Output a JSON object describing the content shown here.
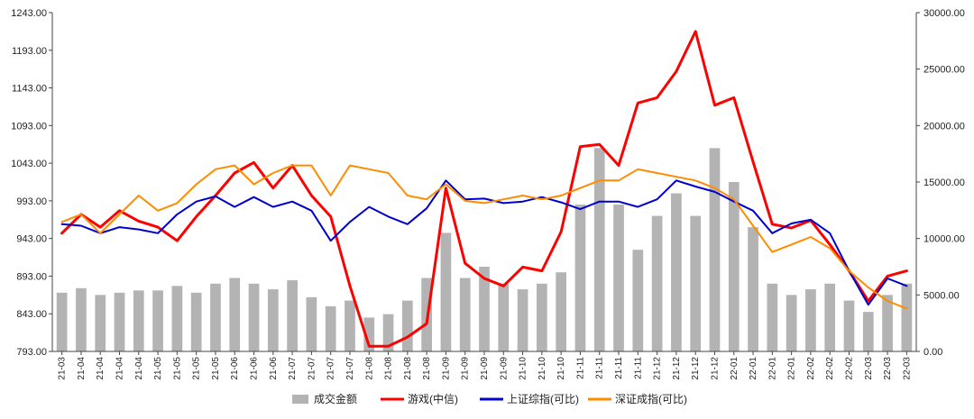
{
  "chart_data": {
    "type": "line",
    "title": "",
    "x_tick_labels": [
      "21-03",
      "21-04",
      "21-04",
      "21-04",
      "21-04",
      "21-05",
      "21-05",
      "21-05",
      "21-05",
      "21-06",
      "21-06",
      "21-06",
      "21-07",
      "21-07",
      "21-07",
      "21-07",
      "21-08",
      "21-08",
      "21-08",
      "21-08",
      "21-09",
      "21-09",
      "21-09",
      "21-09",
      "21-10",
      "21-10",
      "21-10",
      "21-11",
      "21-11",
      "21-11",
      "21-11",
      "21-12",
      "21-12",
      "21-12",
      "21-12",
      "22-01",
      "22-01",
      "22-01",
      "22-01",
      "22-02",
      "22-02",
      "22-02",
      "22-03",
      "22-03",
      "22-03"
    ],
    "y_left": {
      "label": "",
      "min": 793,
      "max": 1243,
      "ticks": [
        "793.00",
        "843.00",
        "893.00",
        "943.00",
        "993.00",
        "1043.00",
        "1093.00",
        "1143.00",
        "1193.00",
        "1243.00"
      ]
    },
    "y_right": {
      "label": "",
      "min": 0,
      "max": 30000,
      "ticks": [
        "0.00",
        "5000.00",
        "10000.00",
        "15000.00",
        "20000.00",
        "25000.00",
        "30000.00"
      ]
    },
    "legend": [
      {
        "name": "成交金额",
        "color": "#b3b3b3",
        "kind": "bar"
      },
      {
        "name": "游戏(中信)",
        "color": "#ff0000",
        "kind": "line"
      },
      {
        "name": "上证综指(可比)",
        "color": "#0000cc",
        "kind": "line"
      },
      {
        "name": "深证成指(可比)",
        "color": "#ff8c00",
        "kind": "line"
      }
    ],
    "series": [
      {
        "name": "游戏(中信)",
        "axis": "left",
        "color": "#ff0000",
        "values": [
          950,
          975,
          958,
          980,
          966,
          958,
          940,
          972,
          1000,
          1030,
          1044,
          1010,
          1040,
          1000,
          972,
          880,
          800,
          800,
          812,
          830,
          1010,
          910,
          890,
          880,
          905,
          900,
          952,
          1065,
          1068,
          1040,
          1123,
          1130,
          1165,
          1218,
          1120,
          1130,
          1045,
          962,
          957,
          967,
          935,
          900,
          860,
          893,
          900
        ]
      },
      {
        "name": "上证综指(可比)",
        "axis": "left",
        "color": "#0000cc",
        "values": [
          962,
          960,
          950,
          958,
          955,
          950,
          975,
          992,
          999,
          985,
          998,
          985,
          992,
          980,
          940,
          965,
          985,
          972,
          962,
          983,
          1020,
          995,
          996,
          990,
          992,
          998,
          991,
          982,
          992,
          992,
          985,
          995,
          1020,
          1012,
          1005,
          992,
          980,
          950,
          963,
          968,
          950,
          900,
          855,
          890,
          880
        ]
      },
      {
        "name": "深证成指(可比)",
        "axis": "left",
        "color": "#ff8c00",
        "values": [
          965,
          975,
          950,
          975,
          1000,
          980,
          990,
          1015,
          1035,
          1040,
          1015,
          1030,
          1040,
          1040,
          1000,
          1040,
          1035,
          1030,
          1000,
          995,
          1015,
          993,
          990,
          995,
          1000,
          995,
          1000,
          1010,
          1020,
          1020,
          1035,
          1030,
          1025,
          1020,
          1010,
          995,
          960,
          925,
          935,
          945,
          930,
          900,
          878,
          860,
          850
        ]
      },
      {
        "name": "成交金额",
        "axis": "right",
        "color": "#b3b3b3",
        "values": [
          5200,
          5600,
          5000,
          5200,
          5400,
          5400,
          5800,
          5200,
          6000,
          6500,
          6000,
          5500,
          6300,
          4800,
          4000,
          4500,
          3000,
          3300,
          4500,
          6500,
          10500,
          6500,
          7500,
          6000,
          5500,
          6000,
          7000,
          13000,
          18000,
          13000,
          9000,
          12000,
          14000,
          12000,
          18000,
          15000,
          11000,
          6000,
          5000,
          5500,
          6000,
          4500,
          3500,
          5000,
          6000
        ]
      }
    ]
  }
}
